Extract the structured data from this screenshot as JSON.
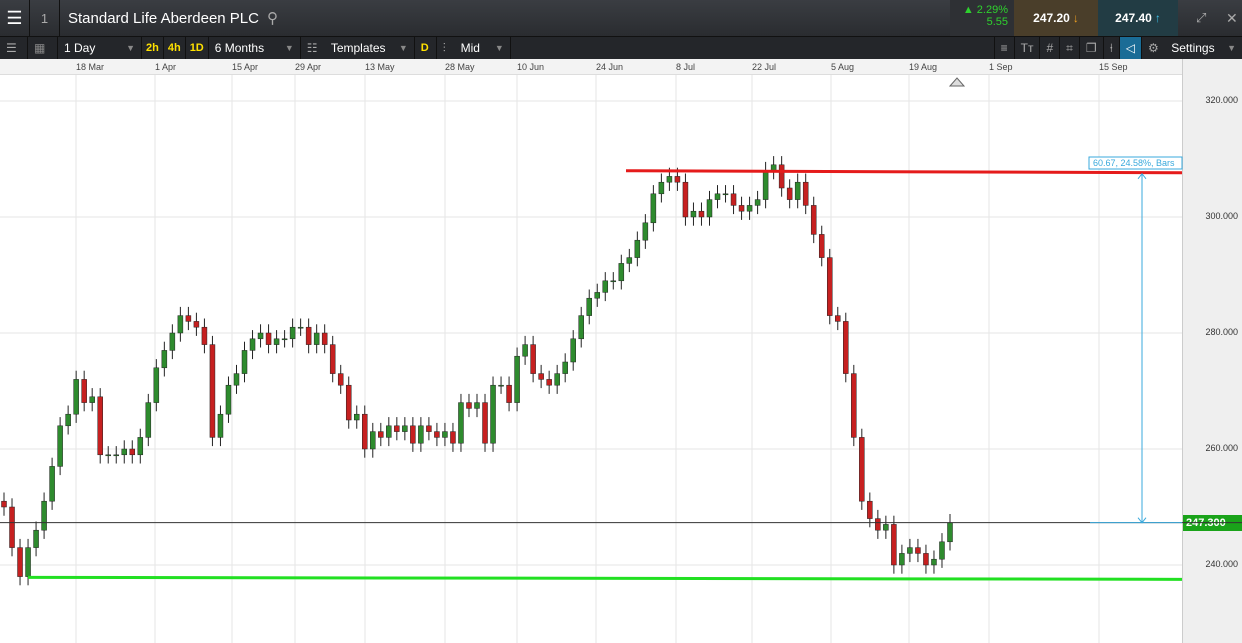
{
  "header": {
    "title": "Standard Life Aberdeen PLC",
    "window_number": "1",
    "change_pct": "2.29%",
    "change_abs": "5.55",
    "sell": "247.20",
    "buy": "247.40"
  },
  "toolbar": {
    "interval": "1 Day",
    "quick": [
      "2h",
      "4h",
      "1D"
    ],
    "range": "6 Months",
    "templates": "Templates",
    "d": "D",
    "price_type": "Mid",
    "settings": "Settings"
  },
  "colors": {
    "up": "#2e8b2e",
    "down": "#c62020",
    "resistance": "#e51b1b",
    "support": "#22e022",
    "measure": "#39a9dc",
    "current": "#1aa31a"
  },
  "chart_data": {
    "type": "candlestick",
    "x_tick_labels": [
      "18 Mar",
      "1 Apr",
      "15 Apr",
      "29 Apr",
      "13 May",
      "28 May",
      "10 Jun",
      "24 Jun",
      "8 Jul",
      "22 Jul",
      "5 Aug",
      "19 Aug",
      "1 Sep",
      "15 Sep"
    ],
    "y_tick_labels": [
      "320.000",
      "300.000",
      "280.000",
      "260.000",
      "240.000"
    ],
    "ylim": [
      231,
      338
    ],
    "current_price": "247.300",
    "closes": [
      250,
      243,
      238,
      243,
      246,
      251,
      257,
      264,
      266,
      272,
      268,
      269,
      259,
      259,
      259,
      260,
      259,
      262,
      268,
      274,
      277,
      280,
      283,
      282,
      281,
      278,
      262,
      266,
      271,
      273,
      277,
      279,
      280,
      278,
      279,
      279,
      281,
      281,
      278,
      280,
      278,
      273,
      271,
      265,
      266,
      260,
      263,
      262,
      264,
      263,
      264,
      261,
      264,
      263,
      262,
      263,
      261,
      268,
      267,
      268,
      261,
      271,
      271,
      268,
      276,
      278,
      273,
      272,
      271,
      273,
      275,
      279,
      283,
      286,
      287,
      289,
      289,
      292,
      293,
      296,
      299,
      304,
      306,
      307,
      306,
      300,
      301,
      300,
      303,
      304,
      304,
      302,
      301,
      302,
      303,
      308,
      309,
      305,
      303,
      306,
      302,
      297,
      293,
      283,
      282,
      273,
      262,
      251,
      248,
      246,
      247,
      240,
      242,
      243,
      242,
      240,
      241,
      244,
      247.3
    ],
    "resistance_level": 307.8,
    "support_level": 237.7,
    "measure_label": "60.67, 24.58%, Bars"
  }
}
